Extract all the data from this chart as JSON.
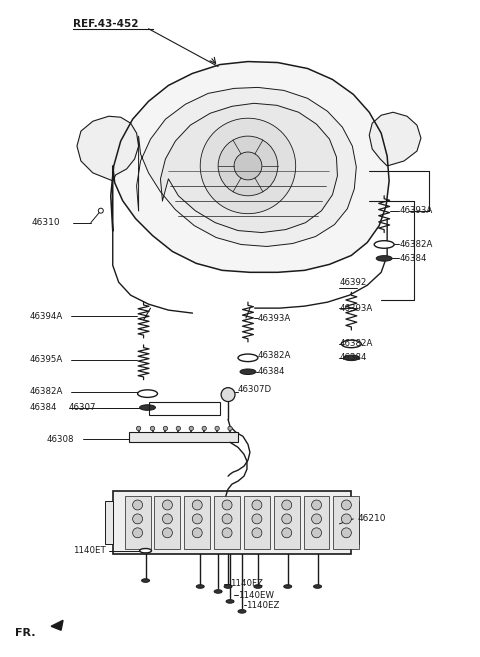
{
  "bg_color": "#ffffff",
  "lc": "#1a1a1a",
  "figsize": [
    4.8,
    6.57
  ],
  "dpi": 100,
  "labels": {
    "ref": "REF.43-452",
    "46310": "46310",
    "46394A": "46394A",
    "46395A": "46395A",
    "46382A_l": "46382A",
    "46384_l": "46384",
    "46393A_tr": "46393A",
    "46382A_tr": "46382A",
    "46384_tr": "46384",
    "46392": "46392",
    "46393A_r1": "46393A",
    "46393A_c": "46393A",
    "46382A_c": "46382A",
    "46384_c": "46384",
    "46382A_r": "46382A",
    "46384_r": "46384",
    "46307D": "46307D",
    "46307": "46307",
    "46308": "46308",
    "46210": "46210",
    "1140ET": "1140ET",
    "1140FZ": "1140FZ",
    "1140EW": "1140EW",
    "1140EZ": "1140EZ",
    "FR": "FR."
  }
}
